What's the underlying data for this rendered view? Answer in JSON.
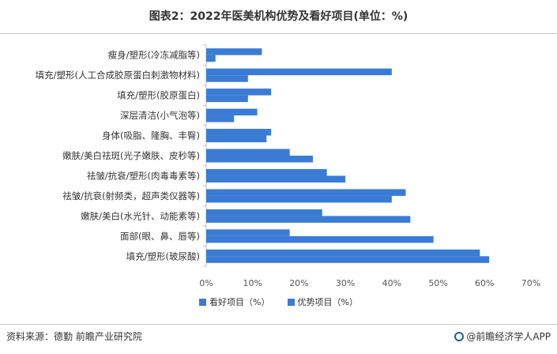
{
  "title": "图表2：2022年医美机构优势及看好项目(单位：%)",
  "footer": {
    "source": "资料来源：德勤 前瞻产业研究院",
    "brand": "@前瞻经济学人APP"
  },
  "colors": {
    "bar": "#3a7bd5",
    "axis": "#bfbfbf",
    "grid": "#e6e6e6"
  },
  "chart_data": {
    "type": "bar",
    "orientation": "horizontal",
    "title": "图表2：2022年医美机构优势及看好项目(单位：%)",
    "categories": [
      "瘦身/塑形(冷冻减脂等)",
      "填充/塑形(人工合成胶原蛋白刺激物材料)",
      "填充/塑形(胶原蛋白)",
      "深层清洁(小气泡等)",
      "身体(吸脂、隆胸、丰臀)",
      "嫩肤/美白祛斑(光子嫩肤、皮秒等)",
      "祛皱/抗衰/塑形(肉毒毒素等)",
      "祛皱/抗衰(射频类，超声类仪器等)",
      "嫩肤/美白(水光针、动能素等)",
      "面部(眼、鼻、唇等)",
      "填充/塑形(玻尿酸)"
    ],
    "series": [
      {
        "name": "看好项目（%）",
        "values": [
          12,
          40,
          14,
          11,
          14,
          18,
          26,
          43,
          25,
          18,
          59
        ]
      },
      {
        "name": "优势项目（%）",
        "values": [
          2,
          9,
          9,
          6,
          13,
          23,
          30,
          40,
          44,
          49,
          61
        ]
      }
    ],
    "xlim": [
      0,
      70
    ],
    "xticks": [
      "0%",
      "10%",
      "20%",
      "30%",
      "40%",
      "50%",
      "60%",
      "70%"
    ],
    "legend_position": "bottom",
    "grid": false
  }
}
